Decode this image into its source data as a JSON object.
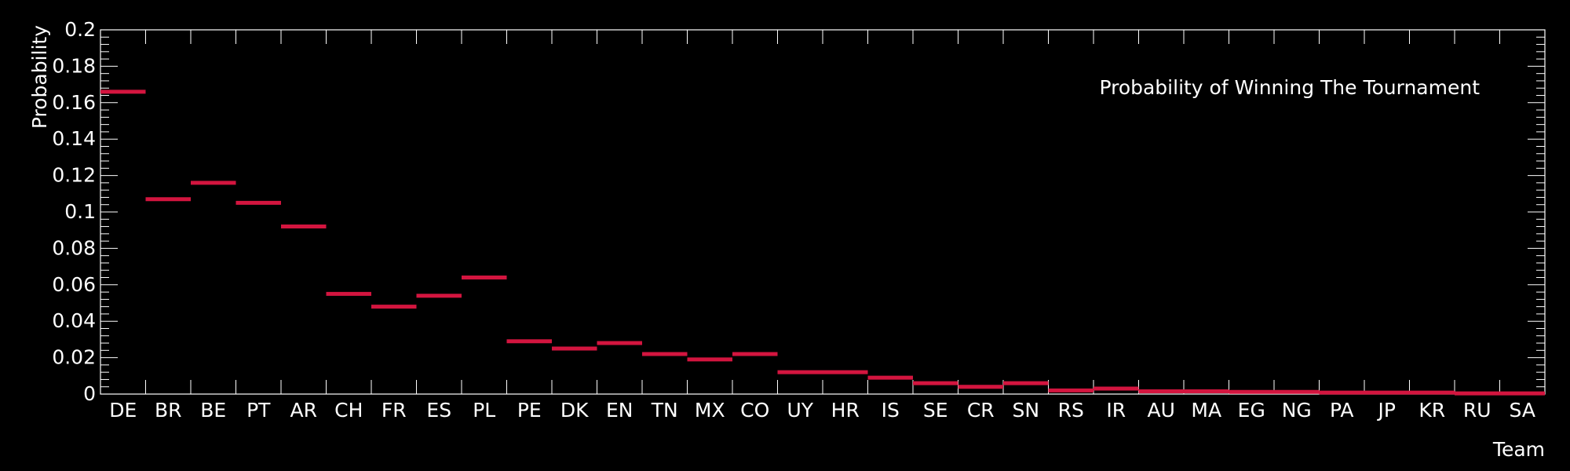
{
  "chart_data": {
    "type": "bar",
    "title": "Probability of Winning The Tournament",
    "xlabel": "Team",
    "ylabel": "Probability",
    "ylim": [
      0,
      0.2
    ],
    "yticks": [
      "0",
      "0.02",
      "0.04",
      "0.06",
      "0.08",
      "0.1",
      "0.12",
      "0.14",
      "0.16",
      "0.18",
      "0.2"
    ],
    "grid": false,
    "categories": [
      "DE",
      "BR",
      "BE",
      "PT",
      "AR",
      "CH",
      "FR",
      "ES",
      "PL",
      "PE",
      "DK",
      "EN",
      "TN",
      "MX",
      "CO",
      "UY",
      "HR",
      "IS",
      "SE",
      "CR",
      "SN",
      "RS",
      "IR",
      "AU",
      "MA",
      "EG",
      "NG",
      "PA",
      "JP",
      "KR",
      "RU",
      "SA"
    ],
    "series": [
      {
        "values": [
          0.166,
          0.107,
          0.116,
          0.105,
          0.092,
          0.055,
          0.048,
          0.054,
          0.064,
          0.029,
          0.025,
          0.028,
          0.022,
          0.019,
          0.022,
          0.012,
          0.012,
          0.009,
          0.006,
          0.004,
          0.006,
          0.002,
          0.003,
          0.0015,
          0.0015,
          0.0012,
          0.0012,
          0.0008,
          0.0008,
          0.0008,
          0.0004,
          0.0004
        ]
      }
    ],
    "colors": {
      "bar": "#d3153f",
      "axis": "#ffffff",
      "background": "#000000"
    }
  }
}
